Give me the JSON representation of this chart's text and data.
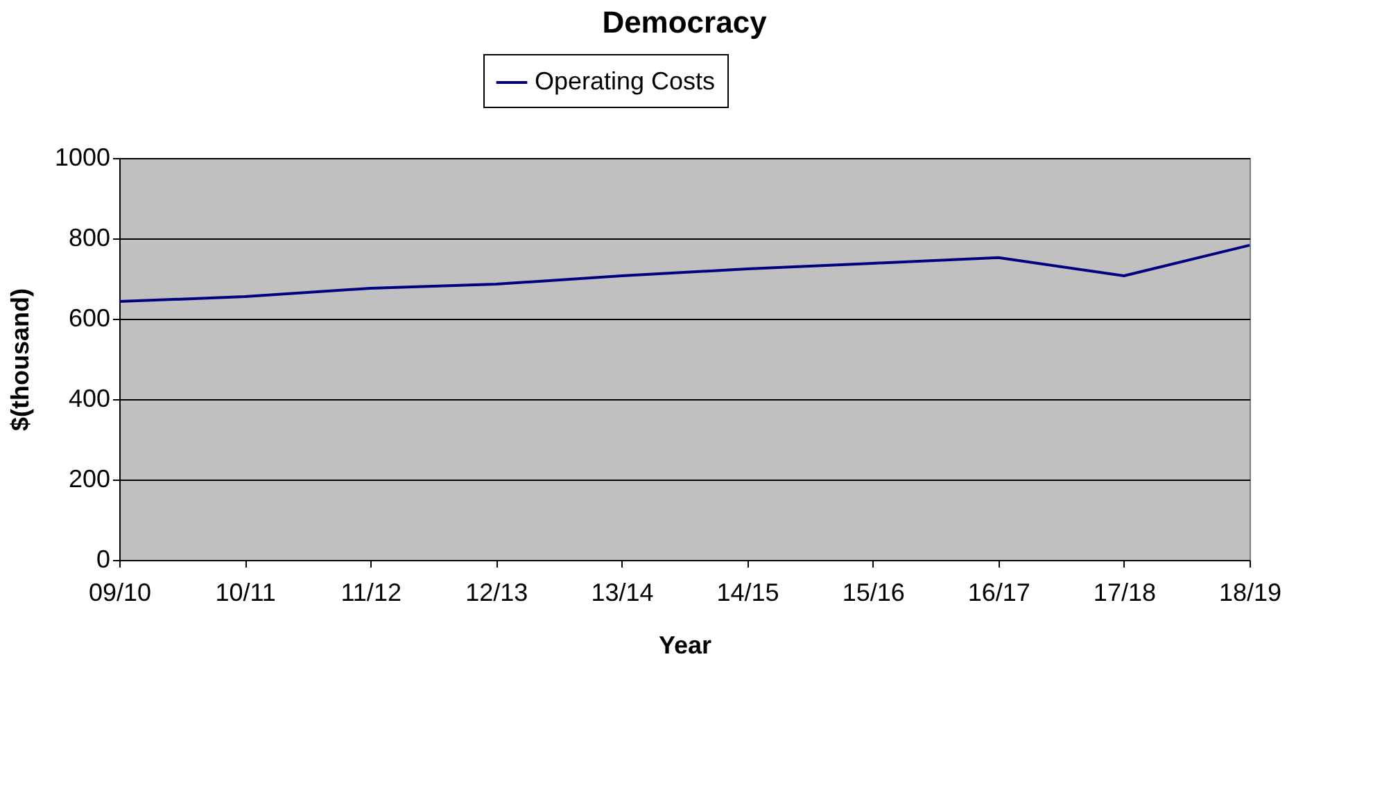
{
  "chart_data": {
    "type": "line",
    "title": "Democracy",
    "xlabel": "Year",
    "ylabel": "$(thousand)",
    "categories": [
      "09/10",
      "10/11",
      "11/12",
      "12/13",
      "13/14",
      "14/15",
      "15/16",
      "16/17",
      "17/18",
      "18/19"
    ],
    "series": [
      {
        "name": "Operating Costs",
        "color": "#000080",
        "values": [
          643,
          655,
          676,
          686,
          707,
          724,
          738,
          752,
          707,
          783
        ]
      }
    ],
    "ylim": [
      0,
      1000
    ],
    "yticks": [
      0,
      200,
      400,
      600,
      800,
      1000
    ],
    "grid": "y",
    "legend": "top",
    "marker": "none",
    "line_style": "solid"
  }
}
